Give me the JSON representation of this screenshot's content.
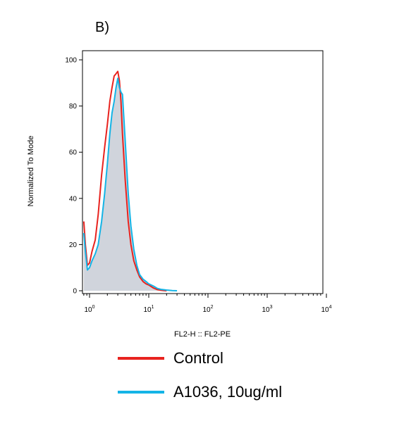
{
  "panel_label": "B)",
  "colors": {
    "control": "#e8231f",
    "treated": "#14b4e6",
    "fill": "#c8ccd6",
    "axis": "#000000"
  },
  "chart_data": {
    "type": "line",
    "title": "",
    "xlabel": "FL2-H :: FL2-PE",
    "ylabel": "Normalized To Mode",
    "x_scale": "log",
    "xlim": [
      0.8,
      10000
    ],
    "ylim": [
      0,
      105
    ],
    "grid": false,
    "legend_position": "bottom",
    "y_ticks": [
      {
        "value": 0,
        "label": "0"
      },
      {
        "value": 20,
        "label": "20"
      },
      {
        "value": 40,
        "label": "40"
      },
      {
        "value": 60,
        "label": "60"
      },
      {
        "value": 80,
        "label": "80"
      },
      {
        "value": 100,
        "label": "100"
      }
    ],
    "x_ticks": [
      {
        "value": 1,
        "base": "10",
        "exp": "0"
      },
      {
        "value": 10,
        "base": "10",
        "exp": "1"
      },
      {
        "value": 100,
        "base": "10",
        "exp": "2"
      },
      {
        "value": 1000,
        "base": "10",
        "exp": "3"
      },
      {
        "value": 10000,
        "base": "10",
        "exp": "4"
      }
    ],
    "series": [
      {
        "name": "Control",
        "color_key": "control",
        "filled": false,
        "x": [
          0.8,
          0.85,
          0.92,
          1.0,
          1.1,
          1.25,
          1.4,
          1.6,
          1.8,
          2.0,
          2.2,
          2.4,
          2.6,
          2.8,
          3.0,
          3.2,
          3.4,
          3.6,
          4.0,
          4.5,
          5.0,
          5.6,
          6.3,
          7.0,
          8.0,
          9.0,
          10,
          12,
          14,
          16,
          18,
          20
        ],
        "y": [
          30,
          20,
          11,
          12,
          17,
          22,
          33,
          50,
          62,
          72,
          82,
          88,
          93,
          94,
          95,
          91,
          82,
          68,
          48,
          30,
          20,
          13,
          9,
          6,
          4,
          3,
          2.5,
          1.2,
          0.5,
          0.2,
          0.1,
          0
        ]
      },
      {
        "name": "A1036, 10ug/ml",
        "color_key": "treated",
        "filled": true,
        "x": [
          0.8,
          0.85,
          0.92,
          1.0,
          1.1,
          1.25,
          1.4,
          1.6,
          1.8,
          2.0,
          2.2,
          2.4,
          2.6,
          2.8,
          3.0,
          3.2,
          3.4,
          3.6,
          4.0,
          4.5,
          5.0,
          5.6,
          6.3,
          7.0,
          8.0,
          9.0,
          10,
          12,
          14,
          16,
          20,
          25,
          30
        ],
        "y": [
          25,
          17,
          9,
          10,
          13,
          16,
          20,
          30,
          42,
          55,
          68,
          77,
          82,
          88,
          92,
          88,
          86,
          85,
          65,
          42,
          28,
          18,
          11,
          7,
          5,
          4,
          3,
          2,
          1,
          0.6,
          0.3,
          0.1,
          0
        ]
      }
    ]
  }
}
